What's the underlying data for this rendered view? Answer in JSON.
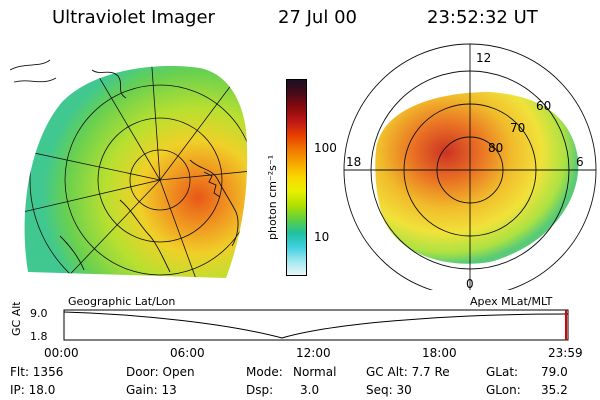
{
  "header": {
    "title": "Ultraviolet Imager",
    "date": "27 Jul 00",
    "time": "23:52:32 UT"
  },
  "colorbar": {
    "unit": "photon cm⁻²s⁻¹",
    "ticks": [
      "100",
      "10"
    ],
    "colors": [
      "#1a1020",
      "#4a0a1a",
      "#8a0a0a",
      "#c01818",
      "#e84000",
      "#f07800",
      "#f8a800",
      "#f8d800",
      "#e8f000",
      "#b0e000",
      "#60d040",
      "#20c0a0",
      "#40d0e0",
      "#a0e8f0",
      "#e8f8f8"
    ]
  },
  "left_map": {
    "caption": "Geographic Lat/Lon"
  },
  "right_map": {
    "caption": "Apex MLat/MLT",
    "mlt_labels": [
      "12",
      "18",
      "6",
      "0"
    ],
    "lat_labels": [
      "60",
      "70",
      "80"
    ]
  },
  "timeline": {
    "ylabel": "GC Alt",
    "y_ticks": [
      "9.0",
      "1.8"
    ],
    "x_ticks": [
      "00:00",
      "06:00",
      "12:00",
      "18:00",
      "23:59"
    ]
  },
  "status": {
    "flt": "Flt: 1356",
    "ip": "IP: 18.0",
    "door": "Door: Open",
    "gain": "Gain: 13",
    "mode_label": "Mode:",
    "mode_value": "Normal",
    "dsp_label": "Dsp:",
    "dsp_value": "3.0",
    "gc_alt": "GC Alt: 7.7 Re",
    "seq": "Seq: 30",
    "glat_label": "GLat:",
    "glat_value": "79.0",
    "glon_label": "GLon:",
    "glon_value": "35.2"
  }
}
